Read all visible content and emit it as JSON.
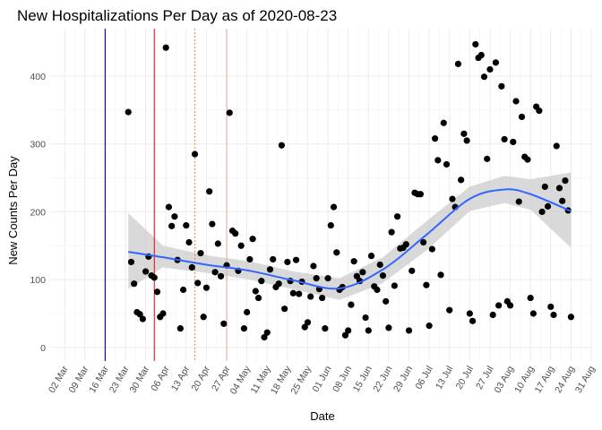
{
  "chart_data": {
    "type": "scatter",
    "title": "New Hospitalizations Per Day as of 2020-08-23",
    "xlabel": "Date",
    "ylabel": "New Counts Per Day",
    "year": 2020,
    "xlim": [
      "2020-02-26",
      "2020-08-31"
    ],
    "ylim": [
      -20,
      470
    ],
    "grid": true,
    "legend": "none",
    "x_ticks": [
      "02 Mar",
      "09 Mar",
      "16 Mar",
      "23 Mar",
      "30 Mar",
      "06 Apr",
      "13 Apr",
      "20 Apr",
      "27 Apr",
      "04 May",
      "11 May",
      "18 May",
      "25 May",
      "01 Jun",
      "08 Jun",
      "15 Jun",
      "22 Jun",
      "29 Jun",
      "06 Jul",
      "13 Jul",
      "20 Jul",
      "27 Jul",
      "03 Aug",
      "10 Aug",
      "17 Aug",
      "24 Aug",
      "31 Aug"
    ],
    "x_tick_dates": [
      "2020-03-02",
      "2020-03-09",
      "2020-03-16",
      "2020-03-23",
      "2020-03-30",
      "2020-04-06",
      "2020-04-13",
      "2020-04-20",
      "2020-04-27",
      "2020-05-04",
      "2020-05-11",
      "2020-05-18",
      "2020-05-25",
      "2020-06-01",
      "2020-06-08",
      "2020-06-15",
      "2020-06-22",
      "2020-06-29",
      "2020-07-06",
      "2020-07-13",
      "2020-07-20",
      "2020-07-27",
      "2020-08-03",
      "2020-08-10",
      "2020-08-17",
      "2020-08-24",
      "2020-08-31"
    ],
    "y_ticks": [
      0,
      100,
      200,
      300,
      400
    ],
    "vertical_lines": [
      {
        "date": "2020-03-16",
        "color": "#00007f",
        "style": "solid"
      },
      {
        "date": "2020-04-02",
        "color": "#e31a1c",
        "style": "solid"
      },
      {
        "date": "2020-04-16",
        "color": "#ff6a00",
        "style": "dotted"
      },
      {
        "date": "2020-04-27",
        "color": "#f4a6b0",
        "style": "solid"
      }
    ],
    "points": [
      [
        "2020-03-24",
        347
      ],
      [
        "2020-03-25",
        126
      ],
      [
        "2020-03-26",
        94
      ],
      [
        "2020-03-27",
        52
      ],
      [
        "2020-03-28",
        49
      ],
      [
        "2020-03-29",
        42
      ],
      [
        "2020-03-30",
        112
      ],
      [
        "2020-03-31",
        134
      ],
      [
        "2020-04-01",
        106
      ],
      [
        "2020-04-02",
        103
      ],
      [
        "2020-04-03",
        82
      ],
      [
        "2020-04-04",
        45
      ],
      [
        "2020-04-05",
        50
      ],
      [
        "2020-04-06",
        442
      ],
      [
        "2020-04-07",
        207
      ],
      [
        "2020-04-08",
        179
      ],
      [
        "2020-04-09",
        193
      ],
      [
        "2020-04-10",
        129
      ],
      [
        "2020-04-11",
        28
      ],
      [
        "2020-04-12",
        85
      ],
      [
        "2020-04-13",
        180
      ],
      [
        "2020-04-14",
        155
      ],
      [
        "2020-04-15",
        118
      ],
      [
        "2020-04-16",
        285
      ],
      [
        "2020-04-17",
        95
      ],
      [
        "2020-04-18",
        139
      ],
      [
        "2020-04-19",
        45
      ],
      [
        "2020-04-20",
        88
      ],
      [
        "2020-04-21",
        230
      ],
      [
        "2020-04-22",
        182
      ],
      [
        "2020-04-23",
        111
      ],
      [
        "2020-04-24",
        153
      ],
      [
        "2020-04-25",
        105
      ],
      [
        "2020-04-26",
        35
      ],
      [
        "2020-04-27",
        121
      ],
      [
        "2020-04-28",
        346
      ],
      [
        "2020-04-29",
        172
      ],
      [
        "2020-04-30",
        168
      ],
      [
        "2020-05-01",
        113
      ],
      [
        "2020-05-02",
        150
      ],
      [
        "2020-05-03",
        28
      ],
      [
        "2020-05-04",
        52
      ],
      [
        "2020-05-05",
        130
      ],
      [
        "2020-05-06",
        160
      ],
      [
        "2020-05-07",
        83
      ],
      [
        "2020-05-08",
        73
      ],
      [
        "2020-05-09",
        98
      ],
      [
        "2020-05-10",
        15
      ],
      [
        "2020-05-11",
        22
      ],
      [
        "2020-05-12",
        115
      ],
      [
        "2020-05-13",
        130
      ],
      [
        "2020-05-14",
        89
      ],
      [
        "2020-05-15",
        94
      ],
      [
        "2020-05-16",
        298
      ],
      [
        "2020-05-17",
        57
      ],
      [
        "2020-05-18",
        126
      ],
      [
        "2020-05-19",
        98
      ],
      [
        "2020-05-20",
        80
      ],
      [
        "2020-05-21",
        129
      ],
      [
        "2020-05-22",
        79
      ],
      [
        "2020-05-23",
        97
      ],
      [
        "2020-05-24",
        30
      ],
      [
        "2020-05-25",
        37
      ],
      [
        "2020-05-26",
        75
      ],
      [
        "2020-05-27",
        120
      ],
      [
        "2020-05-28",
        102
      ],
      [
        "2020-05-29",
        86
      ],
      [
        "2020-05-30",
        73
      ],
      [
        "2020-05-31",
        28
      ],
      [
        "2020-06-01",
        102
      ],
      [
        "2020-06-02",
        180
      ],
      [
        "2020-06-03",
        207
      ],
      [
        "2020-06-04",
        140
      ],
      [
        "2020-06-05",
        85
      ],
      [
        "2020-06-06",
        89
      ],
      [
        "2020-06-07",
        18
      ],
      [
        "2020-06-08",
        25
      ],
      [
        "2020-06-09",
        63
      ],
      [
        "2020-06-10",
        127
      ],
      [
        "2020-06-11",
        105
      ],
      [
        "2020-06-12",
        98
      ],
      [
        "2020-06-13",
        111
      ],
      [
        "2020-06-14",
        44
      ],
      [
        "2020-06-15",
        25
      ],
      [
        "2020-06-16",
        135
      ],
      [
        "2020-06-17",
        90
      ],
      [
        "2020-06-18",
        85
      ],
      [
        "2020-06-19",
        122
      ],
      [
        "2020-06-20",
        106
      ],
      [
        "2020-06-21",
        68
      ],
      [
        "2020-06-22",
        29
      ],
      [
        "2020-06-23",
        170
      ],
      [
        "2020-06-24",
        91
      ],
      [
        "2020-06-25",
        193
      ],
      [
        "2020-06-26",
        146
      ],
      [
        "2020-06-27",
        147
      ],
      [
        "2020-06-28",
        152
      ],
      [
        "2020-06-29",
        25
      ],
      [
        "2020-06-30",
        113
      ],
      [
        "2020-07-01",
        228
      ],
      [
        "2020-07-02",
        226
      ],
      [
        "2020-07-03",
        226
      ],
      [
        "2020-07-04",
        155
      ],
      [
        "2020-07-05",
        92
      ],
      [
        "2020-07-06",
        32
      ],
      [
        "2020-07-07",
        145
      ],
      [
        "2020-07-08",
        308
      ],
      [
        "2020-07-09",
        276
      ],
      [
        "2020-07-10",
        107
      ],
      [
        "2020-07-11",
        331
      ],
      [
        "2020-07-12",
        270
      ],
      [
        "2020-07-13",
        55
      ],
      [
        "2020-07-14",
        219
      ],
      [
        "2020-07-15",
        207
      ],
      [
        "2020-07-16",
        418
      ],
      [
        "2020-07-17",
        247
      ],
      [
        "2020-07-18",
        315
      ],
      [
        "2020-07-19",
        305
      ],
      [
        "2020-07-20",
        50
      ],
      [
        "2020-07-21",
        39
      ],
      [
        "2020-07-22",
        447
      ],
      [
        "2020-07-23",
        427
      ],
      [
        "2020-07-24",
        431
      ],
      [
        "2020-07-25",
        399
      ],
      [
        "2020-07-26",
        278
      ],
      [
        "2020-07-27",
        410
      ],
      [
        "2020-07-28",
        48
      ],
      [
        "2020-07-29",
        420
      ],
      [
        "2020-07-30",
        62
      ],
      [
        "2020-07-31",
        385
      ],
      [
        "2020-08-01",
        307
      ],
      [
        "2020-08-02",
        68
      ],
      [
        "2020-08-03",
        62
      ],
      [
        "2020-08-04",
        303
      ],
      [
        "2020-08-05",
        363
      ],
      [
        "2020-08-06",
        215
      ],
      [
        "2020-08-07",
        340
      ],
      [
        "2020-08-08",
        281
      ],
      [
        "2020-08-09",
        277
      ],
      [
        "2020-08-10",
        73
      ],
      [
        "2020-08-11",
        50
      ],
      [
        "2020-08-12",
        355
      ],
      [
        "2020-08-13",
        349
      ],
      [
        "2020-08-14",
        200
      ],
      [
        "2020-08-15",
        237
      ],
      [
        "2020-08-16",
        208
      ],
      [
        "2020-08-17",
        60
      ],
      [
        "2020-08-18",
        48
      ],
      [
        "2020-08-19",
        297
      ],
      [
        "2020-08-20",
        235
      ],
      [
        "2020-08-21",
        216
      ],
      [
        "2020-08-22",
        246
      ],
      [
        "2020-08-23",
        202
      ],
      [
        "2020-08-24",
        45
      ]
    ],
    "smooth": {
      "color": "#3366ff",
      "band_color": "#cccccc",
      "x": [
        "2020-03-24",
        "2020-04-05",
        "2020-04-20",
        "2020-05-05",
        "2020-05-20",
        "2020-06-05",
        "2020-06-20",
        "2020-07-05",
        "2020-07-20",
        "2020-08-01",
        "2020-08-10",
        "2020-08-24"
      ],
      "fit": [
        141,
        133,
        122,
        113,
        99,
        87,
        115,
        166,
        219,
        233,
        226,
        201
      ],
      "lower": [
        86,
        118,
        110,
        100,
        86,
        70,
        95,
        143,
        201,
        213,
        203,
        147
      ],
      "upper": [
        198,
        150,
        136,
        127,
        112,
        102,
        133,
        186,
        237,
        253,
        248,
        258
      ]
    }
  }
}
